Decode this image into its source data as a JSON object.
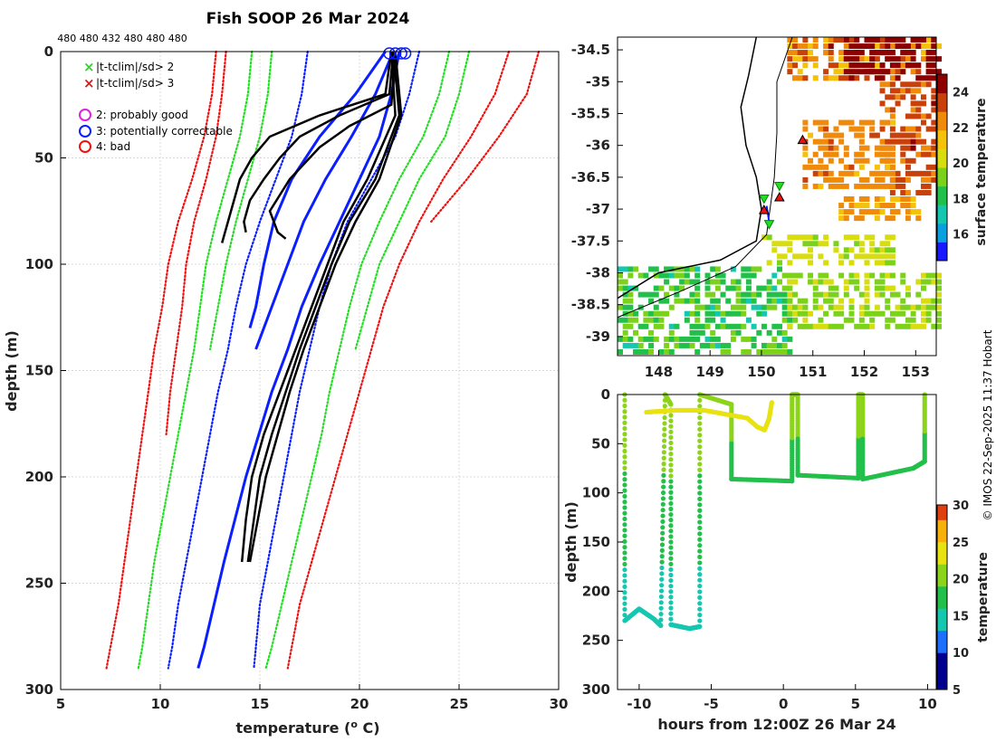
{
  "title": "Fish SOOP 26 Mar 2024",
  "counts_label": "480 480 432 480 480 480",
  "credit": "© IMOS 22-Sep-2025 11:37 Hobart",
  "colors": {
    "green": "#22dd22",
    "red": "#ee1111",
    "blue": "#0a1eff",
    "magenta": "#dd22dd",
    "black": "#000000"
  },
  "legend": {
    "x_items": [
      {
        "marker": "×",
        "color": "#22dd22",
        "label": "|t-tclim|/sd> 2"
      },
      {
        "marker": "×",
        "color": "#ee1111",
        "label": "|t-tclim|/sd> 3"
      }
    ],
    "o_items": [
      {
        "marker": "○",
        "color": "#dd22dd",
        "label": "2: probably good"
      },
      {
        "marker": "○",
        "color": "#0a1eff",
        "label": "3: potentially correctable"
      },
      {
        "marker": "○",
        "color": "#ee1111",
        "label": "4: bad"
      }
    ]
  },
  "chart_data": [
    {
      "type": "line",
      "name": "profiles",
      "xlabel": "temperature (o C)",
      "ylabel": "depth (m)",
      "xlim": [
        5,
        30
      ],
      "ylim": [
        300,
        0
      ],
      "xticks": [
        5,
        10,
        15,
        20,
        25,
        30
      ],
      "yticks": [
        0,
        50,
        100,
        150,
        200,
        250,
        300
      ],
      "grid": true,
      "depth_levels": [
        0,
        20,
        40,
        60,
        80,
        100,
        120,
        140,
        160,
        180,
        200,
        220,
        240,
        260,
        280,
        290
      ],
      "climatology": [
        {
          "name": "clim -3sd",
          "color": "red",
          "temps": [
            12.8,
            12.6,
            12.2,
            11.6,
            10.9,
            10.4,
            10.1,
            9.7,
            9.4,
            9.1,
            8.8,
            8.5,
            8.2,
            7.9,
            7.5,
            7.3
          ]
        },
        {
          "name": "clim -3sd",
          "color": "red",
          "temps": [
            13.3,
            13.1,
            12.8,
            12.3,
            11.7,
            11.3,
            11.1,
            10.8,
            10.5,
            10.3,
            null,
            null,
            null,
            null,
            null,
            null
          ]
        },
        {
          "name": "clim -2sd",
          "color": "green",
          "temps": [
            14.6,
            14.4,
            14.0,
            13.4,
            12.8,
            12.3,
            12.0,
            11.7,
            11.3,
            10.9,
            10.5,
            10.1,
            9.7,
            9.4,
            9.1,
            8.9
          ]
        },
        {
          "name": "clim -2sd",
          "color": "green",
          "temps": [
            15.6,
            15.4,
            15.0,
            14.4,
            13.8,
            13.3,
            12.9,
            12.5,
            null,
            null,
            null,
            null,
            null,
            null,
            null,
            null
          ]
        },
        {
          "name": "clim -1sd",
          "color": "blue",
          "temps": [
            17.4,
            17.1,
            16.6,
            15.8,
            15.0,
            14.3,
            13.8,
            13.4,
            12.9,
            12.5,
            12.1,
            11.7,
            11.3,
            10.9,
            10.6,
            10.4
          ]
        },
        {
          "name": "clim +1sd",
          "color": "blue",
          "temps": [
            23.0,
            22.5,
            21.8,
            20.6,
            19.4,
            18.6,
            18.0,
            17.5,
            17.0,
            16.6,
            16.2,
            15.8,
            15.4,
            15.0,
            14.8,
            14.7
          ]
        },
        {
          "name": "clim +2sd",
          "color": "green",
          "temps": [
            24.5,
            24.0,
            23.2,
            22.0,
            21.0,
            20.1,
            19.5,
            19.0,
            18.5,
            18.1,
            17.6,
            17.1,
            16.6,
            16.1,
            15.6,
            15.3
          ]
        },
        {
          "name": "clim +2sd",
          "color": "green",
          "temps": [
            25.5,
            25.0,
            24.3,
            23.0,
            22.0,
            21.0,
            20.4,
            19.8,
            null,
            null,
            null,
            null,
            null,
            null,
            null,
            null
          ]
        },
        {
          "name": "clim +3sd",
          "color": "red",
          "temps": [
            27.5,
            26.8,
            25.6,
            24.2,
            23.0,
            22.0,
            21.2,
            20.6,
            20.0,
            19.4,
            18.8,
            18.2,
            17.6,
            17.0,
            16.6,
            16.4
          ]
        },
        {
          "name": "clim +3sd",
          "color": "red",
          "temps": [
            29.0,
            28.4,
            27.0,
            25.4,
            23.6,
            null,
            null,
            null,
            null,
            null,
            null,
            null,
            null,
            null,
            null,
            null
          ]
        }
      ],
      "blue_profiles": [
        {
          "depths": [
            0,
            20,
            40,
            60,
            80,
            100,
            120,
            130
          ],
          "temps": [
            21.3,
            19.8,
            18.0,
            16.6,
            15.7,
            15.2,
            14.8,
            14.5
          ]
        },
        {
          "depths": [
            0,
            20,
            40,
            60,
            80,
            100,
            120,
            140
          ],
          "temps": [
            21.7,
            20.8,
            19.6,
            18.3,
            17.2,
            16.4,
            15.6,
            14.8
          ]
        },
        {
          "depths": [
            0,
            20,
            40,
            60,
            80,
            100,
            120,
            140,
            160,
            200,
            240,
            280,
            290
          ],
          "temps": [
            22.0,
            21.6,
            21.0,
            20.0,
            19.0,
            18.0,
            17.1,
            16.4,
            15.6,
            14.3,
            13.2,
            12.2,
            11.9
          ]
        }
      ],
      "black_profiles": [
        {
          "depths": [
            0,
            20,
            30,
            40,
            50,
            60,
            70,
            80,
            90
          ],
          "temps": [
            21.6,
            21.3,
            18.0,
            15.5,
            14.6,
            14.0,
            13.7,
            13.4,
            13.1
          ]
        },
        {
          "depths": [
            0,
            20,
            30,
            40,
            50,
            60,
            70,
            80,
            85
          ],
          "temps": [
            21.7,
            21.5,
            19.0,
            17.0,
            16.0,
            15.2,
            14.5,
            14.2,
            14.3
          ]
        },
        {
          "depths": [
            0,
            25,
            35,
            45,
            60,
            75,
            85,
            88
          ],
          "temps": [
            21.8,
            21.6,
            19.5,
            18.0,
            16.5,
            15.5,
            15.9,
            16.3
          ]
        },
        {
          "depths": [
            0,
            30,
            60,
            80,
            100,
            120,
            140,
            160,
            180,
            200,
            220,
            240
          ],
          "temps": [
            21.6,
            21.8,
            20.4,
            19.2,
            18.4,
            17.6,
            16.8,
            16.0,
            15.2,
            14.6,
            14.3,
            14.1
          ]
        },
        {
          "depths": [
            0,
            30,
            60,
            80,
            100,
            120,
            140,
            160,
            180,
            200,
            220,
            240
          ],
          "temps": [
            21.7,
            22.0,
            20.8,
            19.5,
            18.6,
            17.8,
            17.0,
            16.3,
            15.6,
            15.0,
            14.7,
            14.4
          ]
        },
        {
          "depths": [
            0,
            30,
            60,
            80,
            100,
            120,
            140,
            160,
            180,
            200,
            220,
            240
          ],
          "temps": [
            21.8,
            22.1,
            21.0,
            19.8,
            18.8,
            18.0,
            17.2,
            16.5,
            15.9,
            15.3,
            14.9,
            14.5
          ]
        }
      ],
      "surface_markers": [
        21.5,
        21.8,
        22.1,
        22.3
      ]
    },
    {
      "type": "heatmap",
      "name": "surface temperature map",
      "xlim": [
        147.2,
        153.4
      ],
      "ylim": [
        -39.3,
        -34.3
      ],
      "xticks": [
        148,
        149,
        150,
        151,
        152,
        153
      ],
      "yticks": [
        -34.5,
        -35,
        -35.5,
        -36,
        -36.5,
        -37,
        -37.5,
        -38,
        -38.5,
        -39
      ],
      "colorbar_label": "surface temperature",
      "colorbar_range": [
        14.5,
        25
      ],
      "colorbar_ticks": [
        16,
        18,
        20,
        22,
        24
      ],
      "track": [
        {
          "lon": 150.1,
          "lat": -36.95
        },
        {
          "lon": 150.15,
          "lat": -37.2
        }
      ],
      "markers_green": [
        {
          "lon": 150.35,
          "lat": -36.65
        },
        {
          "lon": 150.05,
          "lat": -36.85
        },
        {
          "lon": 150.15,
          "lat": -37.25
        }
      ],
      "markers_red": [
        {
          "lon": 150.35,
          "lat": -36.8
        },
        {
          "lon": 150.05,
          "lat": -37.0
        },
        {
          "lon": 150.8,
          "lat": -35.9
        }
      ]
    },
    {
      "type": "scatter",
      "name": "depth vs time",
      "xlabel": "hours from 12:00Z 26 Mar 24",
      "ylabel": "depth (m)",
      "xlim": [
        -11.5,
        10.6
      ],
      "ylim": [
        300,
        0
      ],
      "xticks": [
        -10,
        -5,
        0,
        5,
        10
      ],
      "yticks": [
        0,
        50,
        100,
        150,
        200,
        250,
        300
      ],
      "colorbar_label": "temperature",
      "colorbar_range": [
        5,
        30
      ],
      "colorbar_ticks": [
        5,
        10,
        15,
        20,
        25,
        30
      ],
      "bottom_trace": [
        {
          "hour": -11.0,
          "depth": 0,
          "temp": 21.5
        },
        {
          "hour": -11.0,
          "depth": 230,
          "temp": 14.2
        },
        {
          "hour": -10.0,
          "depth": 218,
          "temp": 14.3
        },
        {
          "hour": -9.0,
          "depth": 228,
          "temp": 14.2
        },
        {
          "hour": -8.5,
          "depth": 235,
          "temp": 14.1
        },
        {
          "hour": -8.2,
          "depth": 0,
          "temp": 21.6
        },
        {
          "hour": -7.8,
          "depth": 10,
          "temp": 21.5
        },
        {
          "hour": -7.8,
          "depth": 234,
          "temp": 14.1
        },
        {
          "hour": -6.5,
          "depth": 238,
          "temp": 14.0
        },
        {
          "hour": -5.8,
          "depth": 236,
          "temp": 14.1
        },
        {
          "hour": -5.8,
          "depth": 0,
          "temp": 21.6
        },
        {
          "hour": -3.6,
          "depth": 10,
          "temp": 21.6
        },
        {
          "hour": -3.6,
          "depth": 86,
          "temp": 16.5
        },
        {
          "hour": 0.6,
          "depth": 88,
          "temp": 16.4
        },
        {
          "hour": 0.6,
          "depth": 0,
          "temp": 21.7
        },
        {
          "hour": 1.0,
          "depth": 0,
          "temp": 21.7
        },
        {
          "hour": 1.0,
          "depth": 82,
          "temp": 16.6
        },
        {
          "hour": 5.2,
          "depth": 85,
          "temp": 16.5
        },
        {
          "hour": 5.2,
          "depth": 0,
          "temp": 21.7
        },
        {
          "hour": 5.5,
          "depth": 0,
          "temp": 21.7
        },
        {
          "hour": 5.5,
          "depth": 86,
          "temp": 16.5
        },
        {
          "hour": 9.0,
          "depth": 75,
          "temp": 16.7
        },
        {
          "hour": 9.8,
          "depth": 68,
          "temp": 16.8
        },
        {
          "hour": 9.8,
          "depth": 0,
          "temp": 21.7
        }
      ],
      "surface_trace": [
        {
          "hour": -9.5,
          "depth": 18
        },
        {
          "hour": -8.5,
          "depth": 17
        },
        {
          "hour": -7.5,
          "depth": 16
        },
        {
          "hour": -5.5,
          "depth": 16
        },
        {
          "hour": -4.0,
          "depth": 20
        },
        {
          "hour": -2.5,
          "depth": 24
        },
        {
          "hour": -1.8,
          "depth": 33
        },
        {
          "hour": -1.3,
          "depth": 36
        },
        {
          "hour": -1.0,
          "depth": 25
        },
        {
          "hour": -0.8,
          "depth": 8
        }
      ]
    }
  ]
}
